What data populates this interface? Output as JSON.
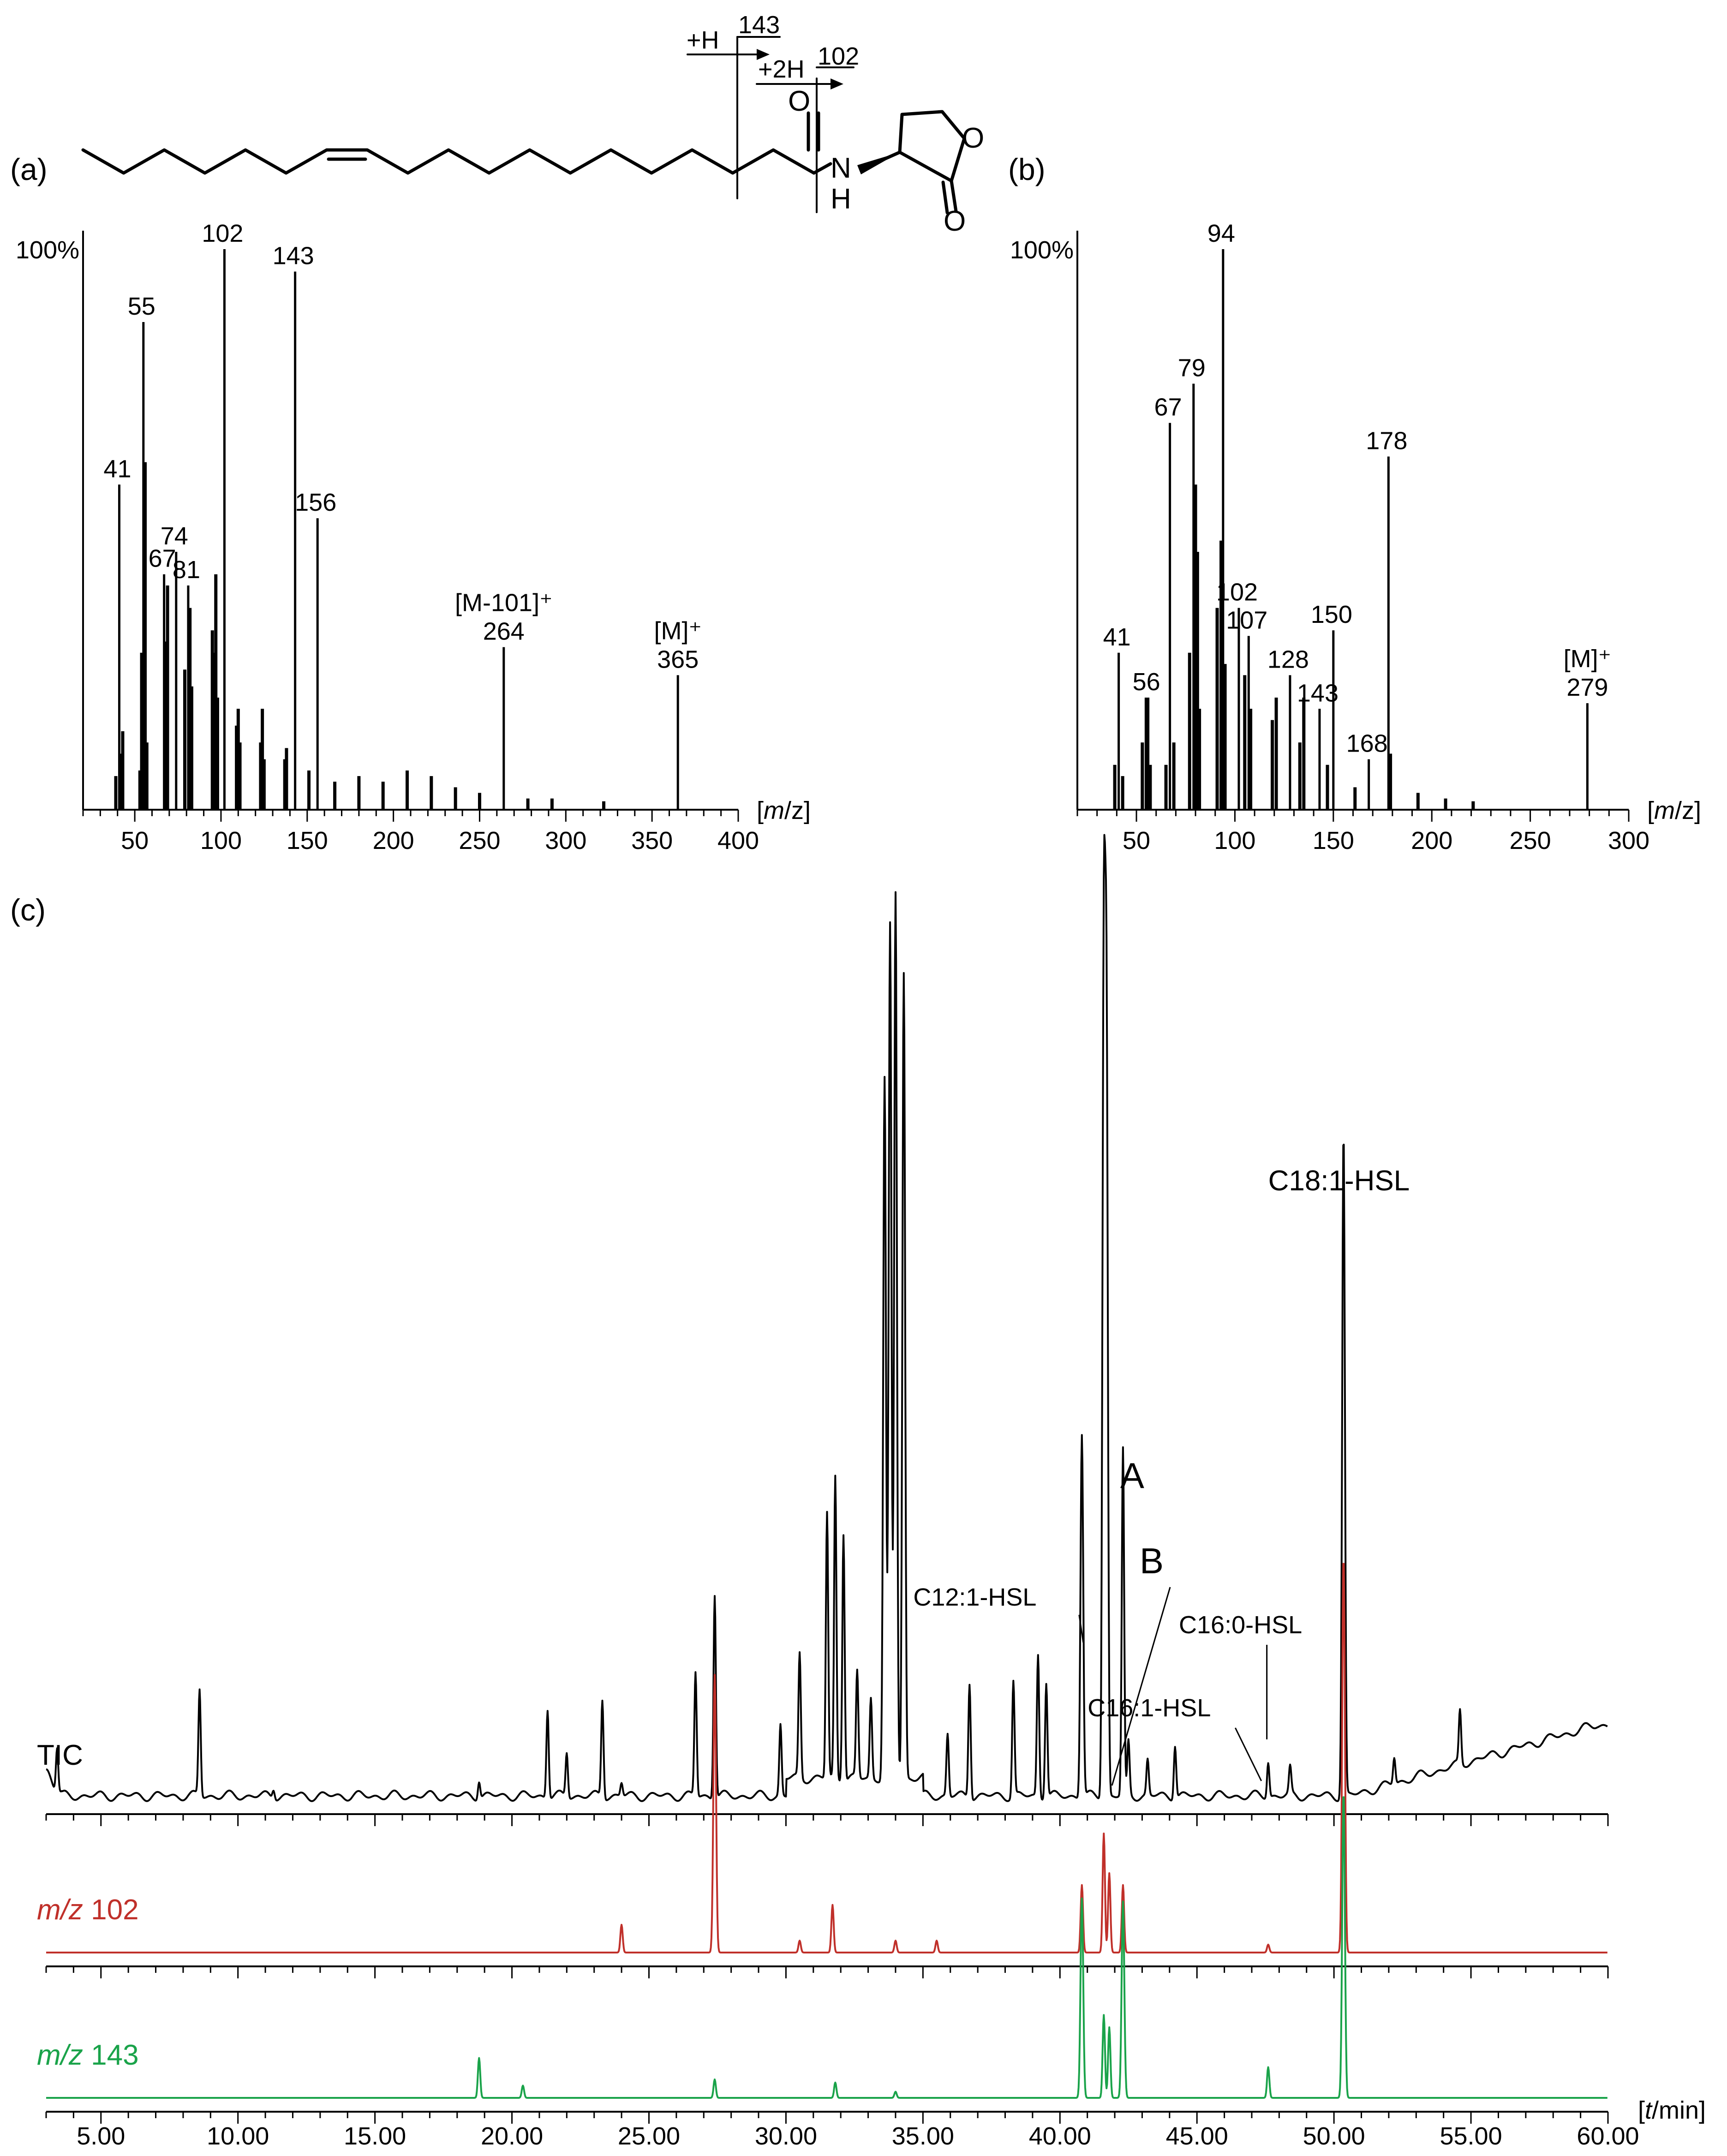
{
  "panels": {
    "a": "(a)",
    "b": "(b)",
    "c": "(c)"
  },
  "structure": {
    "cleave_1_label": "+H",
    "cleave_1_mz": "143",
    "cleave_2_label": "+2H",
    "cleave_2_mz": "102",
    "atom_O_carbonyl": "O",
    "atom_N": "N",
    "atom_H": "H",
    "atom_O_ring": "O",
    "atom_O_lactone": "O"
  },
  "chart_data": [
    {
      "id": "a",
      "type": "bar",
      "subtype": "mass-spectrum",
      "y_top_label": "100%",
      "x_unit_label": "[m/z]",
      "xlim": [
        20,
        400
      ],
      "xticks": [
        50,
        100,
        150,
        200,
        250,
        300,
        350,
        400
      ],
      "ylim": [
        0,
        100
      ],
      "peaks": [
        {
          "mz": 39,
          "intensity": 6
        },
        {
          "mz": 41,
          "intensity": 58,
          "label": "41"
        },
        {
          "mz": 42,
          "intensity": 10
        },
        {
          "mz": 43,
          "intensity": 14
        },
        {
          "mz": 53,
          "intensity": 7
        },
        {
          "mz": 54,
          "intensity": 28
        },
        {
          "mz": 55,
          "intensity": 87,
          "label": "55"
        },
        {
          "mz": 56,
          "intensity": 62
        },
        {
          "mz": 57,
          "intensity": 12
        },
        {
          "mz": 67,
          "intensity": 42,
          "label": "67"
        },
        {
          "mz": 68,
          "intensity": 30
        },
        {
          "mz": 69,
          "intensity": 40
        },
        {
          "mz": 74,
          "intensity": 46,
          "label": "74"
        },
        {
          "mz": 79,
          "intensity": 25
        },
        {
          "mz": 81,
          "intensity": 40,
          "label": "81"
        },
        {
          "mz": 82,
          "intensity": 36
        },
        {
          "mz": 83,
          "intensity": 22
        },
        {
          "mz": 95,
          "intensity": 32
        },
        {
          "mz": 96,
          "intensity": 28
        },
        {
          "mz": 97,
          "intensity": 42
        },
        {
          "mz": 98,
          "intensity": 20
        },
        {
          "mz": 102,
          "intensity": 100,
          "label": "102"
        },
        {
          "mz": 109,
          "intensity": 15
        },
        {
          "mz": 110,
          "intensity": 18
        },
        {
          "mz": 111,
          "intensity": 12
        },
        {
          "mz": 123,
          "intensity": 12
        },
        {
          "mz": 124,
          "intensity": 18
        },
        {
          "mz": 125,
          "intensity": 9
        },
        {
          "mz": 137,
          "intensity": 9
        },
        {
          "mz": 138,
          "intensity": 11
        },
        {
          "mz": 143,
          "intensity": 96,
          "label": "143"
        },
        {
          "mz": 151,
          "intensity": 7
        },
        {
          "mz": 156,
          "intensity": 52,
          "label": "156"
        },
        {
          "mz": 166,
          "intensity": 5
        },
        {
          "mz": 180,
          "intensity": 6
        },
        {
          "mz": 194,
          "intensity": 5
        },
        {
          "mz": 208,
          "intensity": 7
        },
        {
          "mz": 222,
          "intensity": 6
        },
        {
          "mz": 236,
          "intensity": 4
        },
        {
          "mz": 250,
          "intensity": 3
        },
        {
          "mz": 264,
          "intensity": 29,
          "label": "264",
          "label_above": "[M-101]⁺"
        },
        {
          "mz": 278,
          "intensity": 2
        },
        {
          "mz": 292,
          "intensity": 2
        },
        {
          "mz": 322,
          "intensity": 1.5
        },
        {
          "mz": 365,
          "intensity": 24,
          "label": "365",
          "label_above": "[M]⁺"
        }
      ]
    },
    {
      "id": "b",
      "type": "bar",
      "subtype": "mass-spectrum",
      "y_top_label": "100%",
      "x_unit_label": "[m/z]",
      "xlim": [
        20,
        300
      ],
      "xticks": [
        50,
        100,
        150,
        200,
        250,
        300
      ],
      "ylim": [
        0,
        100
      ],
      "peaks": [
        {
          "mz": 39,
          "intensity": 8
        },
        {
          "mz": 41,
          "intensity": 28,
          "label": "41"
        },
        {
          "mz": 43,
          "intensity": 6
        },
        {
          "mz": 53,
          "intensity": 12
        },
        {
          "mz": 55,
          "intensity": 20
        },
        {
          "mz": 56,
          "intensity": 20,
          "label": "56"
        },
        {
          "mz": 57,
          "intensity": 8
        },
        {
          "mz": 65,
          "intensity": 8
        },
        {
          "mz": 67,
          "intensity": 69,
          "label": "67"
        },
        {
          "mz": 69,
          "intensity": 12
        },
        {
          "mz": 77,
          "intensity": 28
        },
        {
          "mz": 79,
          "intensity": 76,
          "label": "79"
        },
        {
          "mz": 80,
          "intensity": 58
        },
        {
          "mz": 81,
          "intensity": 46
        },
        {
          "mz": 82,
          "intensity": 18
        },
        {
          "mz": 91,
          "intensity": 36
        },
        {
          "mz": 93,
          "intensity": 48
        },
        {
          "mz": 94,
          "intensity": 100,
          "label": "94"
        },
        {
          "mz": 95,
          "intensity": 26
        },
        {
          "mz": 102,
          "intensity": 36,
          "label": "102"
        },
        {
          "mz": 105,
          "intensity": 24
        },
        {
          "mz": 107,
          "intensity": 31,
          "label": "107"
        },
        {
          "mz": 108,
          "intensity": 18
        },
        {
          "mz": 119,
          "intensity": 16
        },
        {
          "mz": 121,
          "intensity": 20
        },
        {
          "mz": 128,
          "intensity": 24,
          "label": "128"
        },
        {
          "mz": 133,
          "intensity": 12
        },
        {
          "mz": 135,
          "intensity": 20
        },
        {
          "mz": 143,
          "intensity": 18,
          "label": "143"
        },
        {
          "mz": 147,
          "intensity": 8
        },
        {
          "mz": 150,
          "intensity": 32,
          "label": "150"
        },
        {
          "mz": 161,
          "intensity": 4
        },
        {
          "mz": 168,
          "intensity": 9,
          "label": "168"
        },
        {
          "mz": 178,
          "intensity": 63,
          "label": "178"
        },
        {
          "mz": 179,
          "intensity": 10
        },
        {
          "mz": 193,
          "intensity": 3
        },
        {
          "mz": 207,
          "intensity": 2
        },
        {
          "mz": 221,
          "intensity": 1.5
        },
        {
          "mz": 279,
          "intensity": 19,
          "label": "279",
          "label_above": "[M]⁺"
        }
      ]
    },
    {
      "id": "c",
      "type": "line",
      "subtype": "chromatogram",
      "x_unit_label": "[t/min]",
      "xlim": [
        3,
        60
      ],
      "xticks": [
        5,
        10,
        15,
        20,
        25,
        30,
        35,
        40,
        45,
        50,
        55,
        60
      ],
      "xtick_labels": [
        "5.00",
        "10.00",
        "15.00",
        "20.00",
        "25.00",
        "30.00",
        "35.00",
        "40.00",
        "45.00",
        "50.00",
        "55.00",
        "60.00"
      ],
      "series": [
        {
          "name": "TIC",
          "color": "#000000",
          "peaks": [
            {
              "t": 3.4,
              "h": 5
            },
            {
              "t": 8.6,
              "h": 12
            },
            {
              "t": 11.3,
              "h": 1
            },
            {
              "t": 18.8,
              "h": 2
            },
            {
              "t": 21.3,
              "h": 10
            },
            {
              "t": 22.0,
              "h": 5
            },
            {
              "t": 23.3,
              "h": 11
            },
            {
              "t": 24.0,
              "h": 1.5
            },
            {
              "t": 26.7,
              "h": 14
            },
            {
              "t": 27.4,
              "h": 23
            },
            {
              "t": 29.8,
              "h": 8
            },
            {
              "t": 30.5,
              "h": 14
            },
            {
              "t": 31.5,
              "h": 30
            },
            {
              "t": 31.8,
              "h": 34
            },
            {
              "t": 32.1,
              "h": 28
            },
            {
              "t": 32.6,
              "h": 12
            },
            {
              "t": 33.1,
              "h": 9
            },
            {
              "t": 33.6,
              "h": 79
            },
            {
              "t": 33.8,
              "h": 96
            },
            {
              "t": 34.0,
              "h": 100
            },
            {
              "t": 34.3,
              "h": 91
            },
            {
              "t": 35.9,
              "h": 7
            },
            {
              "t": 36.7,
              "h": 13
            },
            {
              "t": 38.3,
              "h": 13
            },
            {
              "t": 39.2,
              "h": 16
            },
            {
              "t": 39.5,
              "h": 13
            },
            {
              "t": 40.8,
              "h": 41
            },
            {
              "t": 41.6,
              "h": 93
            },
            {
              "t": 41.7,
              "h": 85
            },
            {
              "t": 42.3,
              "h": 39
            },
            {
              "t": 42.5,
              "h": 6
            },
            {
              "t": 43.2,
              "h": 4
            },
            {
              "t": 44.2,
              "h": 6
            },
            {
              "t": 47.6,
              "h": 4
            },
            {
              "t": 48.4,
              "h": 3
            },
            {
              "t": 50.35,
              "h": 75
            },
            {
              "t": 52.2,
              "h": 3
            },
            {
              "t": 54.6,
              "h": 6
            }
          ]
        },
        {
          "name": "m/z 102",
          "color": "#c0302a",
          "peaks": [
            {
              "t": 24.0,
              "h": 7
            },
            {
              "t": 27.4,
              "h": 70
            },
            {
              "t": 30.5,
              "h": 3
            },
            {
              "t": 31.7,
              "h": 12
            },
            {
              "t": 34.0,
              "h": 3
            },
            {
              "t": 35.5,
              "h": 3
            },
            {
              "t": 40.8,
              "h": 17
            },
            {
              "t": 41.6,
              "h": 30
            },
            {
              "t": 41.8,
              "h": 20
            },
            {
              "t": 42.3,
              "h": 17
            },
            {
              "t": 47.6,
              "h": 2
            },
            {
              "t": 50.35,
              "h": 100
            }
          ]
        },
        {
          "name": "m/z 143",
          "color": "#1aa34a",
          "peaks": [
            {
              "t": 18.8,
              "h": 13
            },
            {
              "t": 20.4,
              "h": 4
            },
            {
              "t": 27.4,
              "h": 6
            },
            {
              "t": 31.8,
              "h": 5
            },
            {
              "t": 34.0,
              "h": 2
            },
            {
              "t": 40.8,
              "h": 65
            },
            {
              "t": 41.6,
              "h": 27
            },
            {
              "t": 41.8,
              "h": 23
            },
            {
              "t": 42.3,
              "h": 64
            },
            {
              "t": 47.6,
              "h": 10
            },
            {
              "t": 50.35,
              "h": 100
            }
          ]
        }
      ],
      "annotations": [
        {
          "text": "C18:1-HSL",
          "t": 50.35
        },
        {
          "text": "A",
          "t": 42.3
        },
        {
          "text": "B",
          "t": 41.9
        },
        {
          "text": "C12:1-HSL",
          "t": 40.8
        },
        {
          "text": "C16:0-HSL",
          "t": 47.6
        },
        {
          "text": "C16:1-HSL",
          "t": 47.4
        }
      ]
    }
  ]
}
